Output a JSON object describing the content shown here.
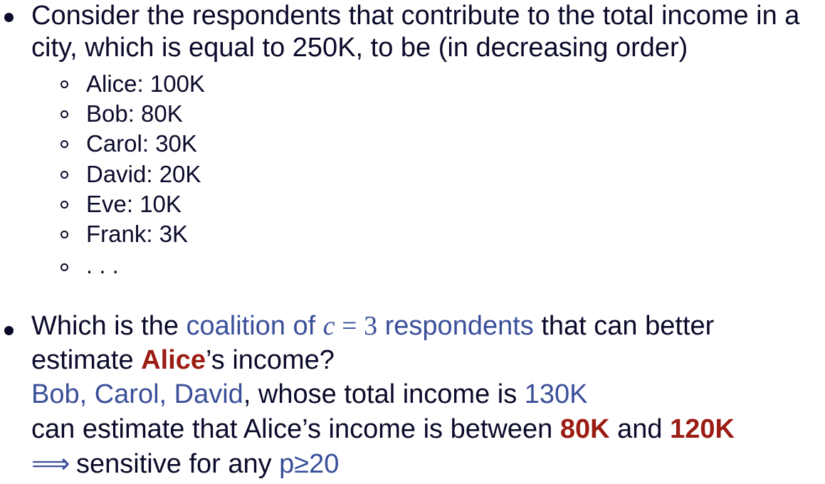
{
  "bullet1": {
    "line1": "Consider the respondents that contribute to the total income in a",
    "line2": "city, which is equal to 250K, to be (in decreasing order)"
  },
  "respondents": [
    "Alice: 100K",
    "Bob: 80K",
    "Carol: 30K",
    "David: 20K",
    "Eve: 10K",
    "Frank: 3K",
    ". . ."
  ],
  "bullet2": {
    "q_prefix": "Which is the ",
    "q_coalition_text": "coalition of ",
    "q_var": "c",
    "q_eq": " = 3",
    "q_respondents": " respondents",
    "q_suffix": " that can better",
    "q_line2_prefix": "estimate ",
    "q_alice": "Alice",
    "q_line2_suffix": "’s income?",
    "a_names": "Bob, Carol, David",
    "a_total_text": ", whose total income is ",
    "a_total": "130K",
    "est_prefix": "can estimate that Alice’s income is between ",
    "est_low": "80K",
    "est_and": " and ",
    "est_high": "120K",
    "impl_arrow": "⟹",
    "impl_text": " sensitive for any ",
    "impl_cond": "p≥20"
  },
  "colors": {
    "text": "#0a0a2a",
    "blue": "#3a4f9a",
    "red": "#9b1c12"
  }
}
